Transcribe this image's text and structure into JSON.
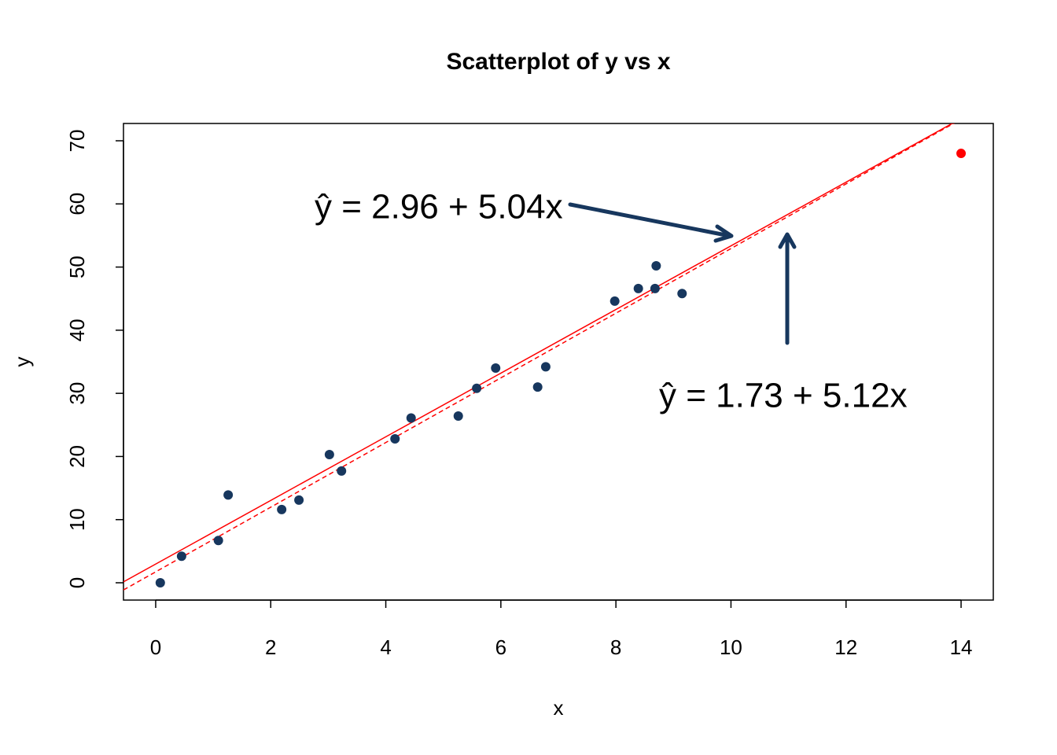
{
  "chart_data": {
    "type": "scatter",
    "title": "Scatterplot of y vs x",
    "xlabel": "x",
    "ylabel": "y",
    "xlim": [
      -0.56,
      14.56
    ],
    "ylim": [
      -2.74,
      72.74
    ],
    "xticks": [
      0,
      2,
      4,
      6,
      8,
      10,
      12,
      14
    ],
    "yticks": [
      0,
      10,
      20,
      30,
      40,
      50,
      60,
      70
    ],
    "series": [
      {
        "color": "#17375e",
        "x": [
          0.08,
          0.45,
          1.09,
          1.26,
          2.19,
          2.49,
          3.02,
          3.23,
          4.16,
          4.44,
          5.26,
          5.58,
          5.91,
          6.64,
          6.78,
          7.98,
          8.39,
          8.68,
          8.7,
          9.15
        ],
        "values": [
          0,
          4.2,
          6.7,
          13.9,
          11.6,
          13.1,
          20.3,
          17.7,
          22.8,
          26.1,
          26.4,
          30.8,
          34.0,
          31.0,
          34.2,
          44.6,
          46.6,
          46.6,
          50.2,
          45.8
        ]
      },
      {
        "color": "#ff0000",
        "x": [
          14
        ],
        "values": [
          68
        ]
      }
    ],
    "lines": [
      {
        "intercept": 2.96,
        "slope": 5.04,
        "style": "solid",
        "color": "#ff0000"
      },
      {
        "intercept": 1.73,
        "slope": 5.12,
        "style": "dashed",
        "color": "#ff0000"
      }
    ],
    "annotations": [
      {
        "text": "ŷ = 2.96 + 5.04x"
      },
      {
        "text": "ŷ = 1.73 + 5.12x"
      }
    ]
  }
}
